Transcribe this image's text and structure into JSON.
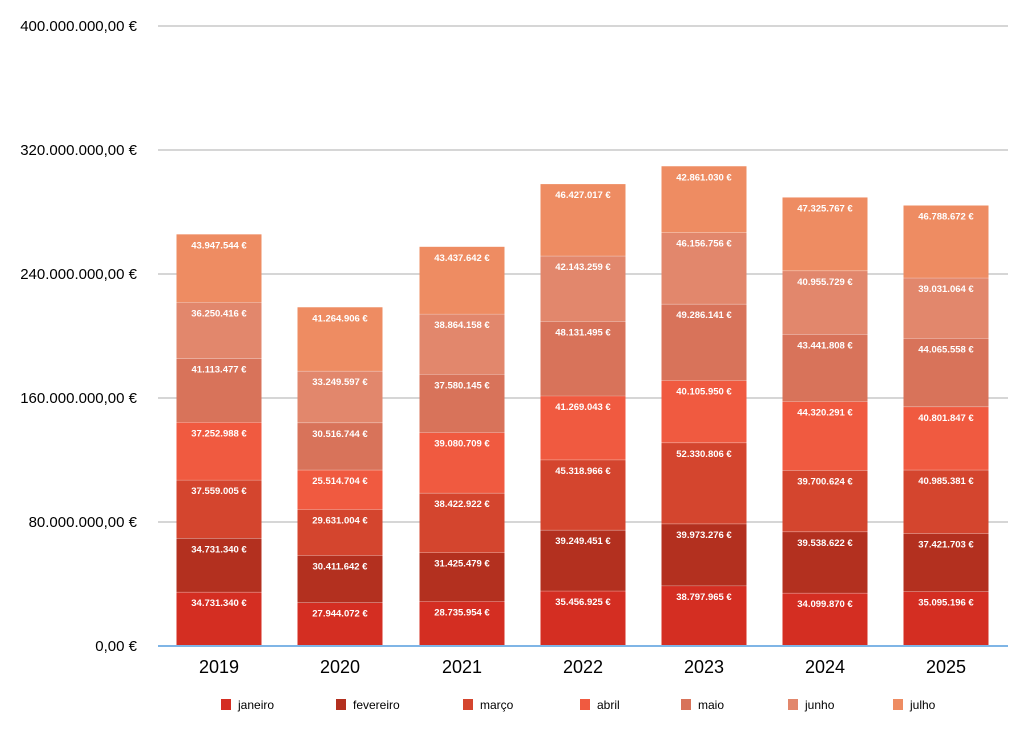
{
  "chart_data": {
    "type": "bar",
    "stacked": true,
    "title": "",
    "xlabel": "",
    "ylabel": "",
    "ylim": [
      0,
      400000000
    ],
    "yticks": [
      0,
      80000000,
      160000000,
      240000000,
      320000000,
      400000000
    ],
    "ytick_labels": [
      "0,00 €",
      "80.000.000,00 €",
      "160.000.000,00 €",
      "240.000.000,00 €",
      "320.000.000,00 €",
      "400.000.000,00 €"
    ],
    "grid": true,
    "legend_position": "bottom",
    "categories": [
      "2019",
      "2020",
      "2021",
      "2022",
      "2023",
      "2024",
      "2025"
    ],
    "series": [
      {
        "name": "janeiro",
        "color": "#d42e22",
        "values": [
          34731340,
          27944072,
          28735954,
          35456925,
          38797965,
          34099870,
          35095196
        ],
        "labels": [
          "34.731.340 €",
          "27.944.072 €",
          "28.735.954 €",
          "35.456.925 €",
          "38.797.965 €",
          "34.099.870 €",
          "35.095.196 €"
        ]
      },
      {
        "name": "fevereiro",
        "color": "#b3301f",
        "values": [
          34731340,
          30411642,
          31425479,
          39249451,
          39973276,
          39538622,
          37421703
        ],
        "labels": [
          "34.731.340 €",
          "30.411.642 €",
          "31.425.479 €",
          "39.249.451 €",
          "39.973.276 €",
          "39.538.622 €",
          "37.421.703 €"
        ]
      },
      {
        "name": "março",
        "color": "#d4452e",
        "values": [
          37559005,
          29631004,
          38422922,
          45318966,
          52330806,
          39700624,
          40985381
        ],
        "labels": [
          "37.559.005 €",
          "29.631.004 €",
          "38.422.922 €",
          "45.318.966 €",
          "52.330.806 €",
          "39.700.624 €",
          "40.985.381 €"
        ]
      },
      {
        "name": "abril",
        "color": "#f05a40",
        "values": [
          37252988,
          25514704,
          39080709,
          41269043,
          40105950,
          44320291,
          40801847
        ],
        "labels": [
          "37.252.988 €",
          "25.514.704 €",
          "39.080.709 €",
          "41.269.043 €",
          "40.105.950 €",
          "44.320.291 €",
          "40.801.847 €"
        ]
      },
      {
        "name": "maio",
        "color": "#d8735a",
        "values": [
          41113477,
          30516744,
          37580145,
          48131495,
          49286141,
          43441808,
          44065558
        ],
        "labels": [
          "41.113.477 €",
          "30.516.744 €",
          "37.580.145 €",
          "48.131.495 €",
          "49.286.141 €",
          "43.441.808 €",
          "44.065.558 €"
        ]
      },
      {
        "name": "junho",
        "color": "#e2876c",
        "values": [
          36250416,
          33249597,
          38864158,
          42143259,
          46156756,
          40955729,
          39031064
        ],
        "labels": [
          "36.250.416 €",
          "33.249.597 €",
          "38.864.158 €",
          "42.143.259 €",
          "46.156.756 €",
          "40.955.729 €",
          "39.031.064 €"
        ]
      },
      {
        "name": "julho",
        "color": "#ee8c62",
        "values": [
          43947544,
          41264906,
          43437642,
          46427017,
          42861030,
          47325767,
          46788672
        ],
        "labels": [
          "43.947.544 €",
          "41.264.906 €",
          "43.437.642 €",
          "46.427.017 €",
          "42.861.030 €",
          "47.325.767 €",
          "46.788.672 €"
        ]
      }
    ],
    "colors": {
      "grid": "#c8c8c8",
      "baseline": "#7fb5e6",
      "segment_separator": "#ffffff"
    }
  }
}
